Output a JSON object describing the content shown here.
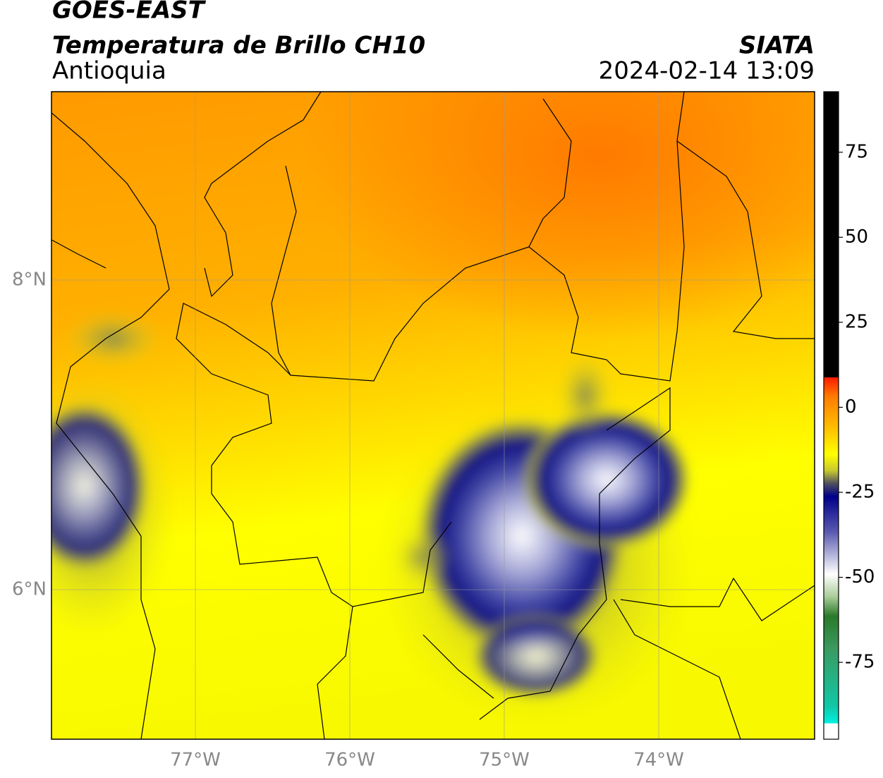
{
  "header": {
    "title": "GOES-EAST",
    "product": "Temperatura de Brillo CH10",
    "region": "Antioquia",
    "source": "SIATA",
    "datetime": "2024-02-14 13:09"
  },
  "map": {
    "lat_labels": [
      "8°N",
      "6°N"
    ],
    "lon_labels": [
      "77°W",
      "76°W",
      "75°W",
      "74°W"
    ]
  },
  "colorbar": {
    "range": [
      -97.6,
      92.8
    ],
    "ticks": [
      75,
      50,
      25,
      0,
      -25,
      -50,
      -75
    ]
  }
}
